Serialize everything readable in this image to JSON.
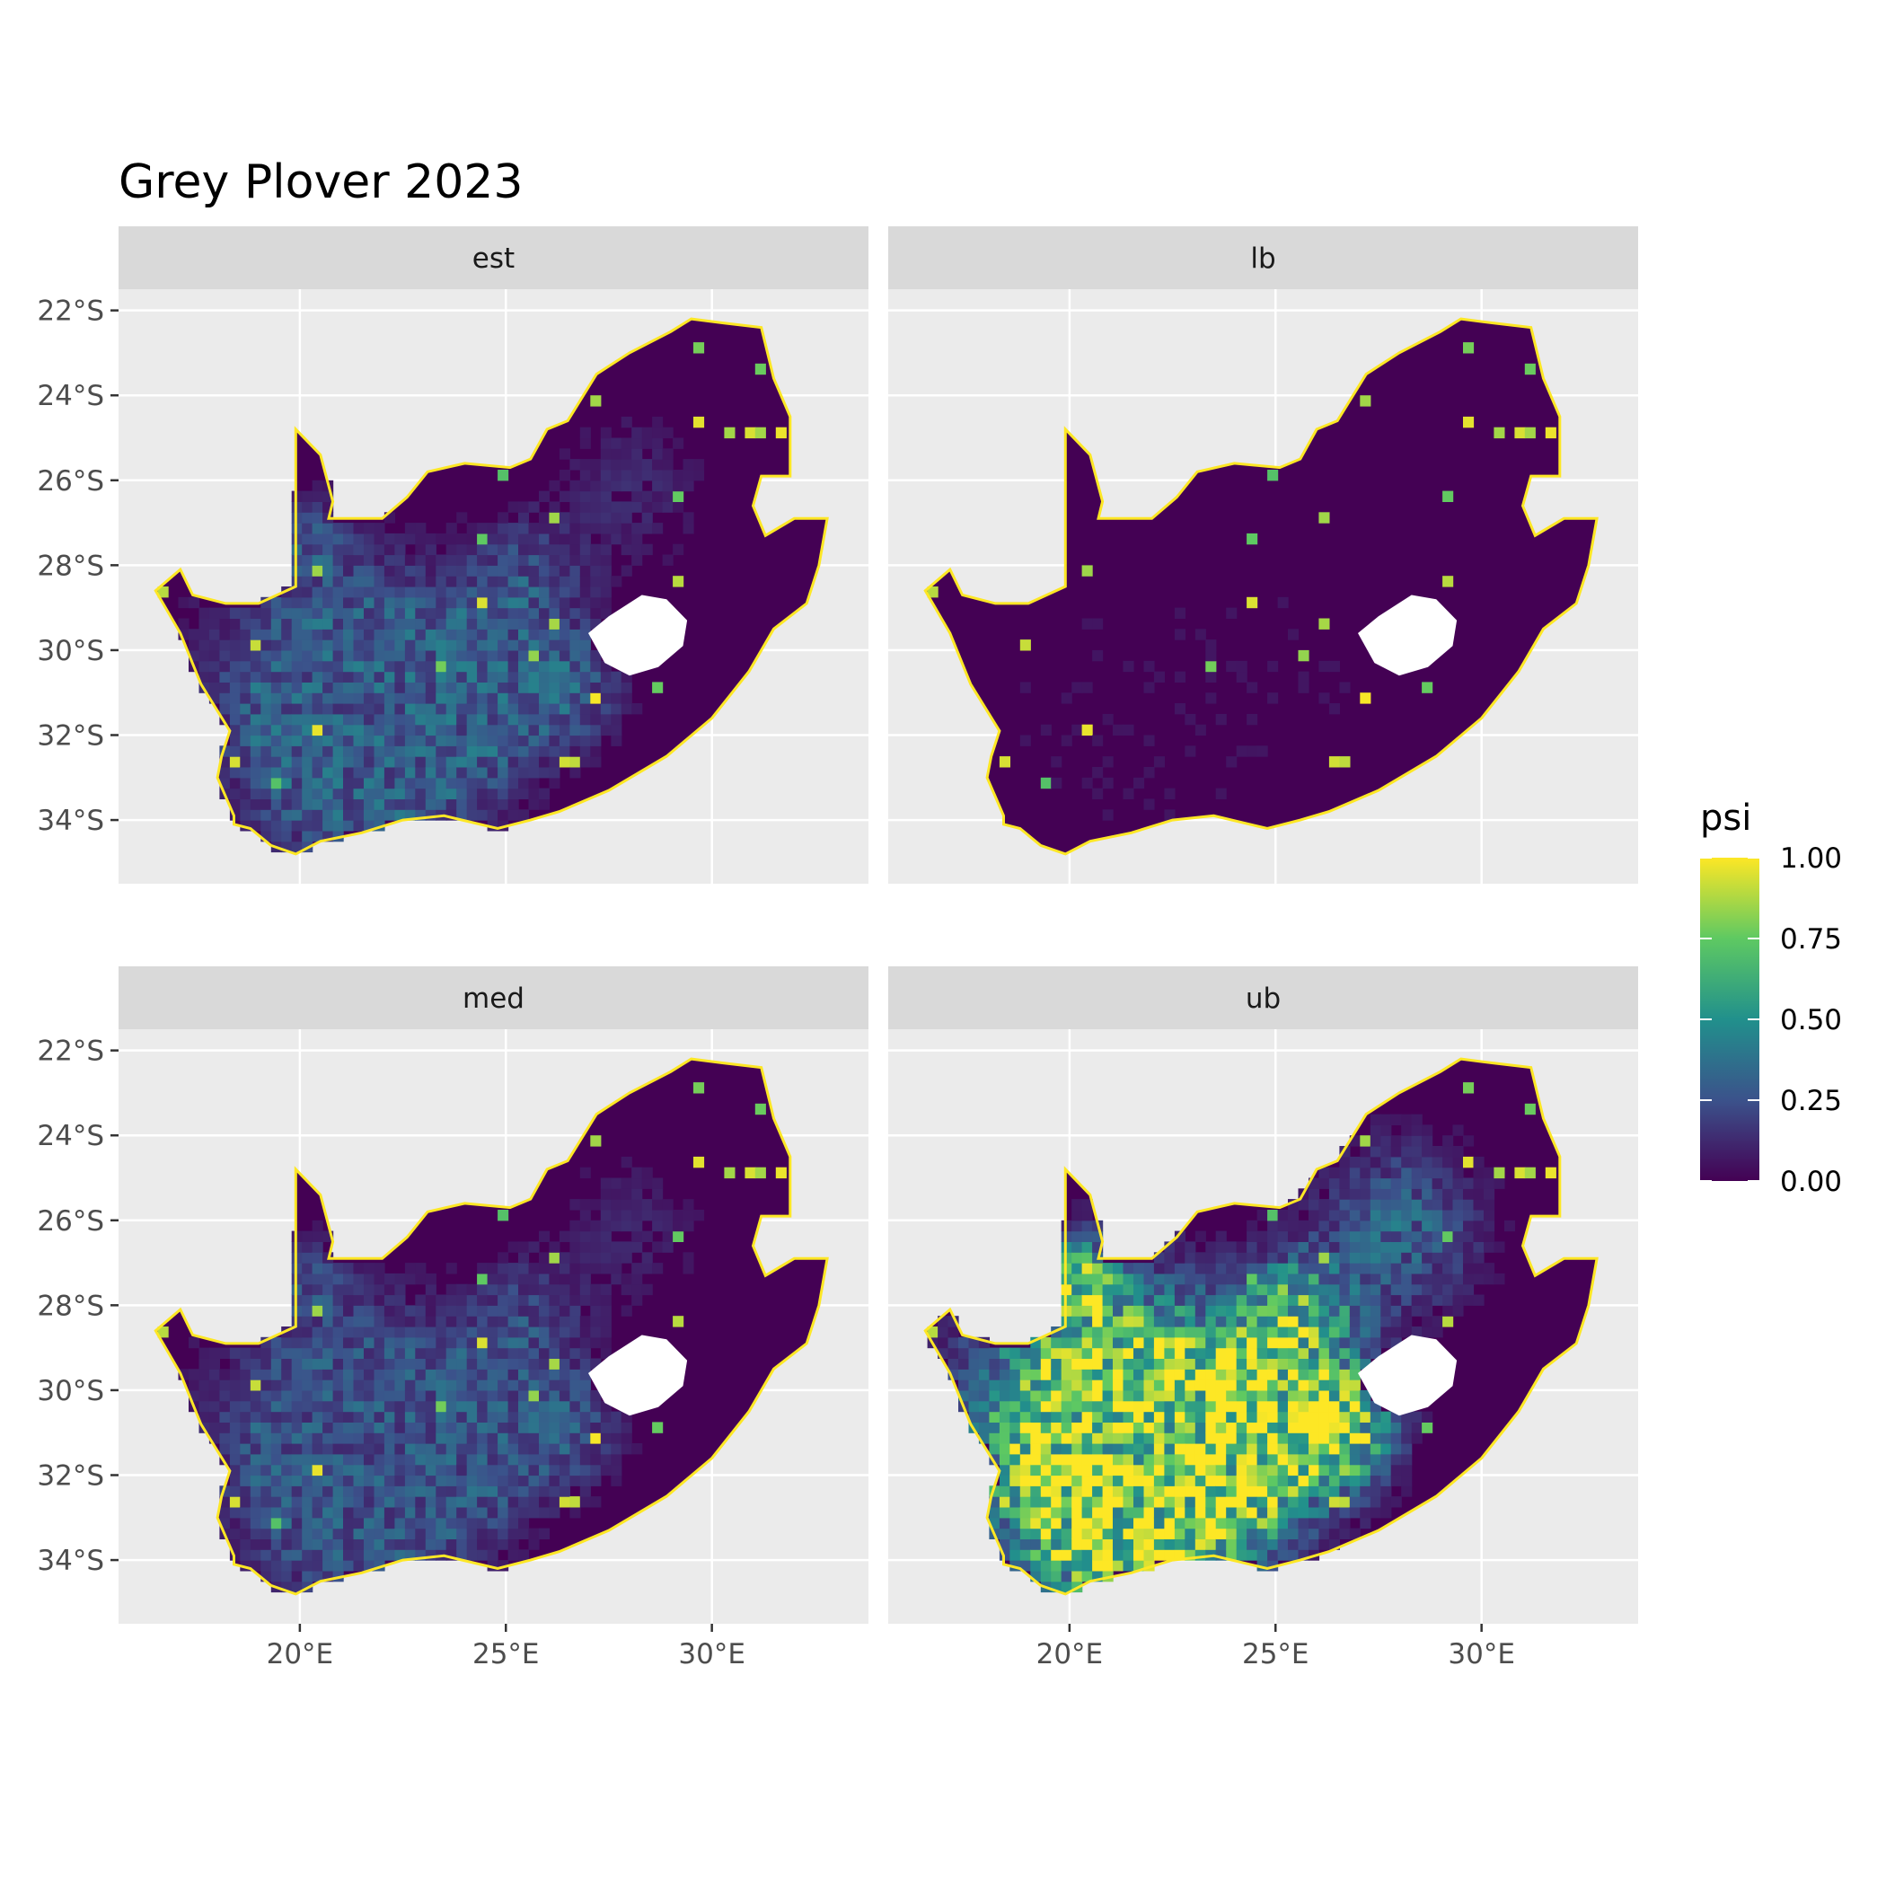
{
  "title": "Grey Plover 2023",
  "panels": [
    {
      "label": "est",
      "show_y": true,
      "show_x": false
    },
    {
      "label": "lb",
      "show_y": false,
      "show_x": false
    },
    {
      "label": "med",
      "show_y": true,
      "show_x": true
    },
    {
      "label": "ub",
      "show_y": false,
      "show_x": true
    }
  ],
  "axes": {
    "x_ticks": [
      {
        "value": 20,
        "label": "20°E"
      },
      {
        "value": 25,
        "label": "25°E"
      },
      {
        "value": 30,
        "label": "30°E"
      }
    ],
    "y_ticks": [
      {
        "value": -22,
        "label": "22°S"
      },
      {
        "value": -24,
        "label": "24°S"
      },
      {
        "value": -26,
        "label": "26°S"
      },
      {
        "value": -28,
        "label": "28°S"
      },
      {
        "value": -30,
        "label": "30°S"
      },
      {
        "value": -32,
        "label": "32°S"
      },
      {
        "value": -34,
        "label": "34°S"
      }
    ],
    "xlim": [
      15.6,
      33.8
    ],
    "ylim": [
      -35.5,
      -21.5
    ]
  },
  "legend": {
    "title": "psi",
    "labels": [
      "1.00",
      "0.75",
      "0.50",
      "0.25",
      "0.00"
    ],
    "stops": [
      0.0,
      0.25,
      0.5,
      0.75,
      1.0
    ],
    "colors": [
      "#440154",
      "#3b528b",
      "#21908c",
      "#5ec962",
      "#fde725"
    ]
  },
  "colors": {
    "panel_bg": "#ebebeb",
    "strip_bg": "#d9d9d9",
    "grid": "#ffffff",
    "land_base": "#440154",
    "coast": "#fde725"
  },
  "map": {
    "outline": [
      [
        16.5,
        -28.6
      ],
      [
        17.1,
        -28.1
      ],
      [
        17.4,
        -28.7
      ],
      [
        18.2,
        -28.9
      ],
      [
        19.0,
        -28.9
      ],
      [
        19.9,
        -28.5
      ],
      [
        19.9,
        -24.8
      ],
      [
        20.5,
        -25.4
      ],
      [
        20.8,
        -26.5
      ],
      [
        20.7,
        -26.9
      ],
      [
        22.0,
        -26.9
      ],
      [
        22.6,
        -26.4
      ],
      [
        23.1,
        -25.8
      ],
      [
        24.0,
        -25.6
      ],
      [
        25.1,
        -25.7
      ],
      [
        25.6,
        -25.5
      ],
      [
        26.0,
        -24.8
      ],
      [
        26.5,
        -24.6
      ],
      [
        27.2,
        -23.5
      ],
      [
        28.0,
        -23.0
      ],
      [
        29.0,
        -22.5
      ],
      [
        29.5,
        -22.2
      ],
      [
        30.3,
        -22.3
      ],
      [
        31.2,
        -22.4
      ],
      [
        31.5,
        -23.6
      ],
      [
        31.9,
        -24.5
      ],
      [
        31.9,
        -25.9
      ],
      [
        31.2,
        -25.9
      ],
      [
        31.0,
        -26.6
      ],
      [
        31.3,
        -27.3
      ],
      [
        32.0,
        -26.9
      ],
      [
        32.8,
        -26.9
      ],
      [
        32.6,
        -28.0
      ],
      [
        32.3,
        -28.9
      ],
      [
        31.5,
        -29.5
      ],
      [
        30.9,
        -30.5
      ],
      [
        30.0,
        -31.6
      ],
      [
        28.9,
        -32.5
      ],
      [
        27.5,
        -33.3
      ],
      [
        26.3,
        -33.8
      ],
      [
        25.6,
        -34.0
      ],
      [
        24.8,
        -34.2
      ],
      [
        23.5,
        -33.9
      ],
      [
        22.5,
        -34.0
      ],
      [
        21.5,
        -34.3
      ],
      [
        20.5,
        -34.5
      ],
      [
        19.9,
        -34.8
      ],
      [
        19.3,
        -34.6
      ],
      [
        18.8,
        -34.2
      ],
      [
        18.4,
        -34.1
      ],
      [
        18.4,
        -33.9
      ],
      [
        18.0,
        -33.0
      ],
      [
        18.1,
        -32.5
      ],
      [
        18.3,
        -31.9
      ],
      [
        17.6,
        -30.8
      ],
      [
        17.1,
        -29.6
      ],
      [
        16.5,
        -28.6
      ]
    ],
    "lesotho": [
      [
        27.0,
        -29.6
      ],
      [
        27.5,
        -29.2
      ],
      [
        28.3,
        -28.7
      ],
      [
        28.9,
        -28.8
      ],
      [
        29.4,
        -29.3
      ],
      [
        29.3,
        -29.9
      ],
      [
        28.7,
        -30.4
      ],
      [
        28.0,
        -30.6
      ],
      [
        27.4,
        -30.3
      ],
      [
        27.0,
        -29.6
      ]
    ],
    "hotspots": [
      {
        "lon": 20.8,
        "lat": -30.8,
        "r": 3.0,
        "w": 1.0
      },
      {
        "lon": 22.5,
        "lat": -31.6,
        "r": 2.4,
        "w": 0.95
      },
      {
        "lon": 21.0,
        "lat": -32.5,
        "r": 2.2,
        "w": 0.9
      },
      {
        "lon": 24.5,
        "lat": -31.0,
        "r": 2.0,
        "w": 0.85
      },
      {
        "lon": 26.5,
        "lat": -30.8,
        "r": 1.3,
        "w": 0.85
      },
      {
        "lon": 25.5,
        "lat": -28.3,
        "r": 1.4,
        "w": 0.7
      },
      {
        "lon": 20.3,
        "lat": -27.5,
        "r": 1.0,
        "w": 0.6
      },
      {
        "lon": 28.0,
        "lat": -26.2,
        "r": 2.0,
        "w": 0.35
      }
    ],
    "panel_scale": [
      0.34,
      0.05,
      0.3,
      1.0
    ]
  }
}
